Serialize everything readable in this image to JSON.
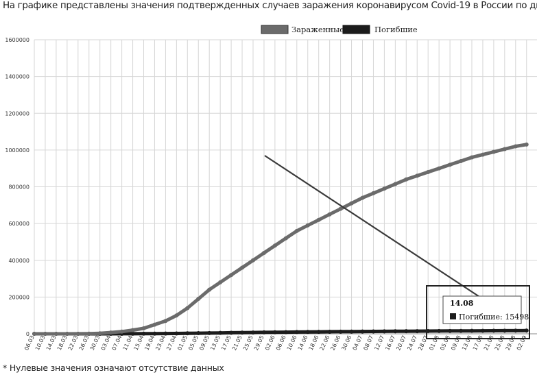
{
  "caption": "На графике представлены значения подтвержденных случаев заражения коронавирусом Covid-19 в России по дням от начала сбора официальных данных",
  "footnote": "* Нулевые значения означают отсутствие данных",
  "chart_data": {
    "type": "line",
    "ylim": [
      0,
      1600000
    ],
    "y_ticks": [
      "1600000",
      "1400000",
      "1200000",
      "1000000",
      "800000",
      "600000",
      "400000",
      "200000",
      "0"
    ],
    "x_tick_labels": [
      "06.03",
      "10.03",
      "14.03",
      "18.03",
      "22.03",
      "26.03",
      "30.03",
      "03.04",
      "07.04",
      "11.04",
      "15.04",
      "19.04",
      "23.04",
      "27.04",
      "01.05",
      "05.05",
      "09.05",
      "13.05",
      "17.05",
      "21.05",
      "25.05",
      "29.05",
      "02.06",
      "06.06",
      "10.06",
      "14.06",
      "18.06",
      "22.06",
      "26.06",
      "30.06",
      "04.07",
      "08.07",
      "12.07",
      "16.07",
      "20.07",
      "24.07",
      "28.07",
      "01.08",
      "05.08",
      "09.08",
      "13.08",
      "17.08",
      "21.08",
      "25.08",
      "29.08",
      "02.09"
    ],
    "series": [
      {
        "name": "Зараженные",
        "color": "#6b6b6b",
        "values": [
          0,
          0,
          0,
          0,
          200,
          1000,
          3000,
          7000,
          12000,
          20000,
          30000,
          50000,
          70000,
          100000,
          140000,
          190000,
          240000,
          280000,
          320000,
          360000,
          400000,
          440000,
          480000,
          520000,
          560000,
          590000,
          620000,
          650000,
          680000,
          710000,
          740000,
          765000,
          790000,
          815000,
          840000,
          860000,
          880000,
          900000,
          920000,
          940000,
          960000,
          975000,
          990000,
          1005000,
          1020000,
          1030000
        ]
      },
      {
        "name": "Погибшие",
        "color": "#1c1c1c",
        "values": [
          0,
          0,
          0,
          0,
          0,
          10,
          50,
          100,
          200,
          400,
          700,
          1000,
          1500,
          2000,
          2700,
          3500,
          4200,
          5000,
          5800,
          6500,
          7200,
          7800,
          8400,
          9000,
          9600,
          10200,
          10800,
          11400,
          11800,
          12200,
          12700,
          13100,
          13500,
          13900,
          14300,
          14600,
          14900,
          15200,
          15498,
          15800,
          16100,
          16400,
          16700,
          17000,
          17300,
          17600
        ]
      }
    ],
    "tooltip": {
      "title": "14.08",
      "series": "Погибшие",
      "label": "Погибшие: 15498",
      "value": 15498
    },
    "legend_position": "top-center",
    "grid": true,
    "annotations": [
      "arrow pointing to tooltip",
      "rectangle highlighting the tooltip"
    ]
  }
}
